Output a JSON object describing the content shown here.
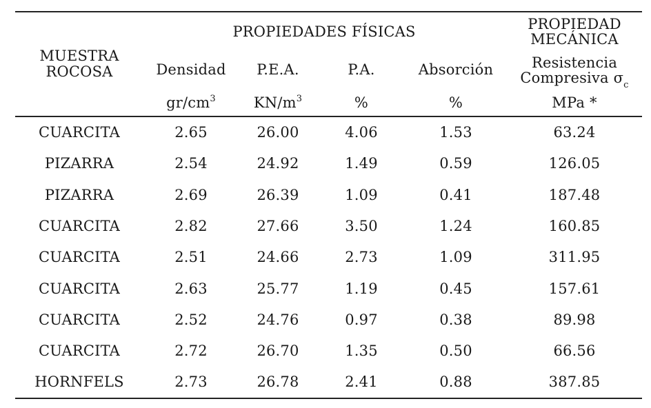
{
  "header": {
    "group_physical": "PROPIEDADES FÍSICAS",
    "group_mechanical_line1": "PROPIEDAD",
    "group_mechanical_line2": "MECÁNICA",
    "sample_line1": "MUESTRA",
    "sample_line2": "ROCOSA",
    "columns": [
      {
        "label": "Densidad",
        "unit_base": "gr/cm",
        "unit_sup": "3"
      },
      {
        "label": "P.E.A.",
        "unit_base": "KN/m",
        "unit_sup": "3"
      },
      {
        "label": "P.A.",
        "unit_base": "%",
        "unit_sup": ""
      },
      {
        "label": "Absorción",
        "unit_base": "%",
        "unit_sup": ""
      }
    ],
    "strength_line1": "Resistencia",
    "strength_line2": "Compresiva σ",
    "strength_sub": "c",
    "strength_unit": "MPa *"
  },
  "rows": [
    [
      "CUARCITA",
      "2.65",
      "26.00",
      "4.06",
      "1.53",
      "63.24"
    ],
    [
      "PIZARRA",
      "2.54",
      "24.92",
      "1.49",
      "0.59",
      "126.05"
    ],
    [
      "PIZARRA",
      "2.69",
      "26.39",
      "1.09",
      "0.41",
      "187.48"
    ],
    [
      "CUARCITA",
      "2.82",
      "27.66",
      "3.50",
      "1.24",
      "160.85"
    ],
    [
      "CUARCITA",
      "2.51",
      "24.66",
      "2.73",
      "1.09",
      "311.95"
    ],
    [
      "CUARCITA",
      "2.63",
      "25.77",
      "1.19",
      "0.45",
      "157.61"
    ],
    [
      "CUARCITA",
      "2.52",
      "24.76",
      "0.97",
      "0.38",
      "89.98"
    ],
    [
      "CUARCITA",
      "2.72",
      "26.70",
      "1.35",
      "0.50",
      "66.56"
    ],
    [
      "HORNFELS",
      "2.73",
      "26.78",
      "2.41",
      "0.88",
      "387.85"
    ]
  ]
}
